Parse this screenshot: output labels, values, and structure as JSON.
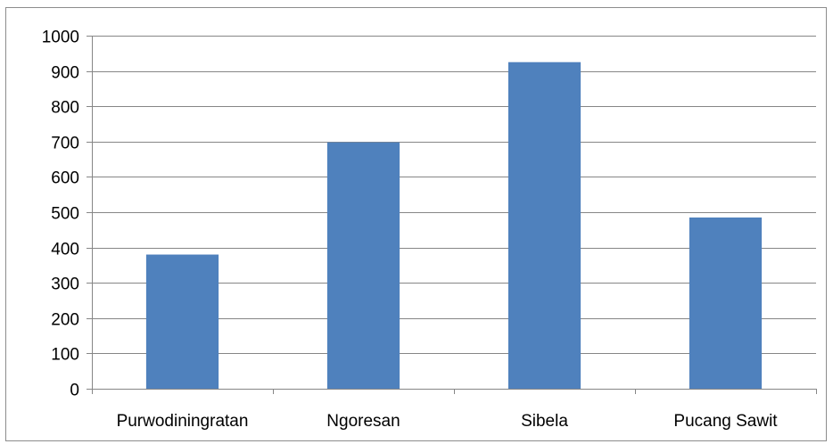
{
  "chart_data": {
    "type": "bar",
    "title": "",
    "xlabel": "",
    "ylabel": "",
    "categories": [
      "Purwodiningratan",
      "Ngoresan",
      "Sibela",
      "Pucang Sawit"
    ],
    "values": [
      380,
      698,
      925,
      485
    ],
    "ylim": [
      0,
      1000
    ],
    "ytick_step": 100,
    "grid": true,
    "legend": "none",
    "bar_color": "#4f81bd",
    "grid_color": "#868686",
    "axis_color": "#868686"
  }
}
